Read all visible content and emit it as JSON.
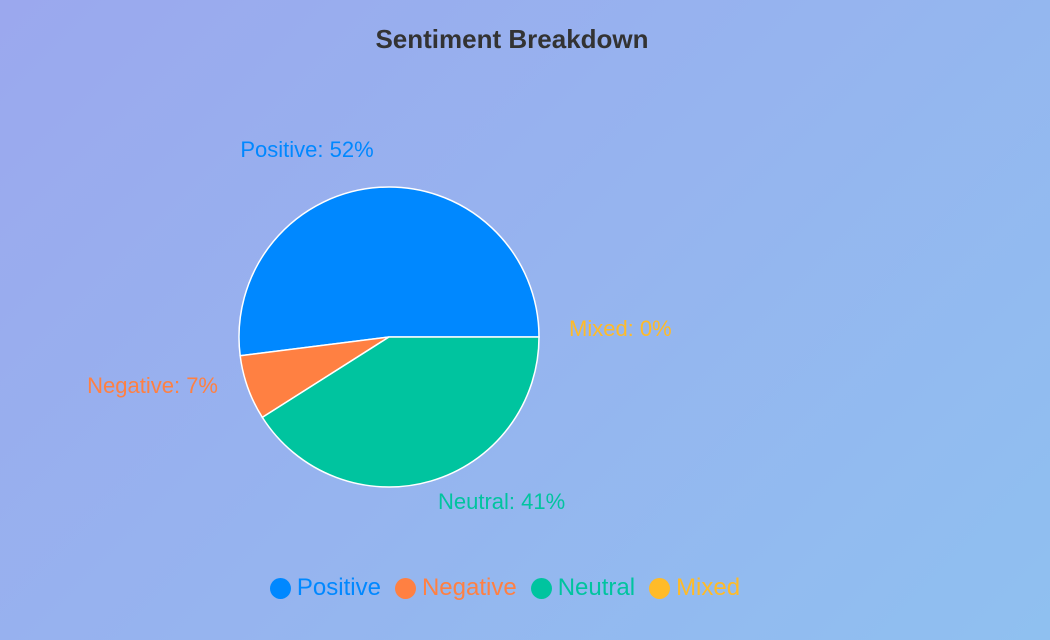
{
  "chart_data": {
    "type": "pie",
    "title": "Sentiment Breakdown",
    "series": [
      {
        "name": "Positive",
        "value": 52,
        "color": "#0088ff",
        "label": "Positive: 52%"
      },
      {
        "name": "Negative",
        "value": 7,
        "color": "#ff8042",
        "label": "Negative: 7%"
      },
      {
        "name": "Neutral",
        "value": 41,
        "color": "#00c49f",
        "label": "Neutral: 41%"
      },
      {
        "name": "Mixed",
        "value": 0,
        "color": "#ffbb28",
        "label": "Mixed: 0%"
      }
    ],
    "legend": {
      "position": "bottom",
      "items": [
        "Positive",
        "Negative",
        "Neutral",
        "Mixed"
      ]
    }
  }
}
